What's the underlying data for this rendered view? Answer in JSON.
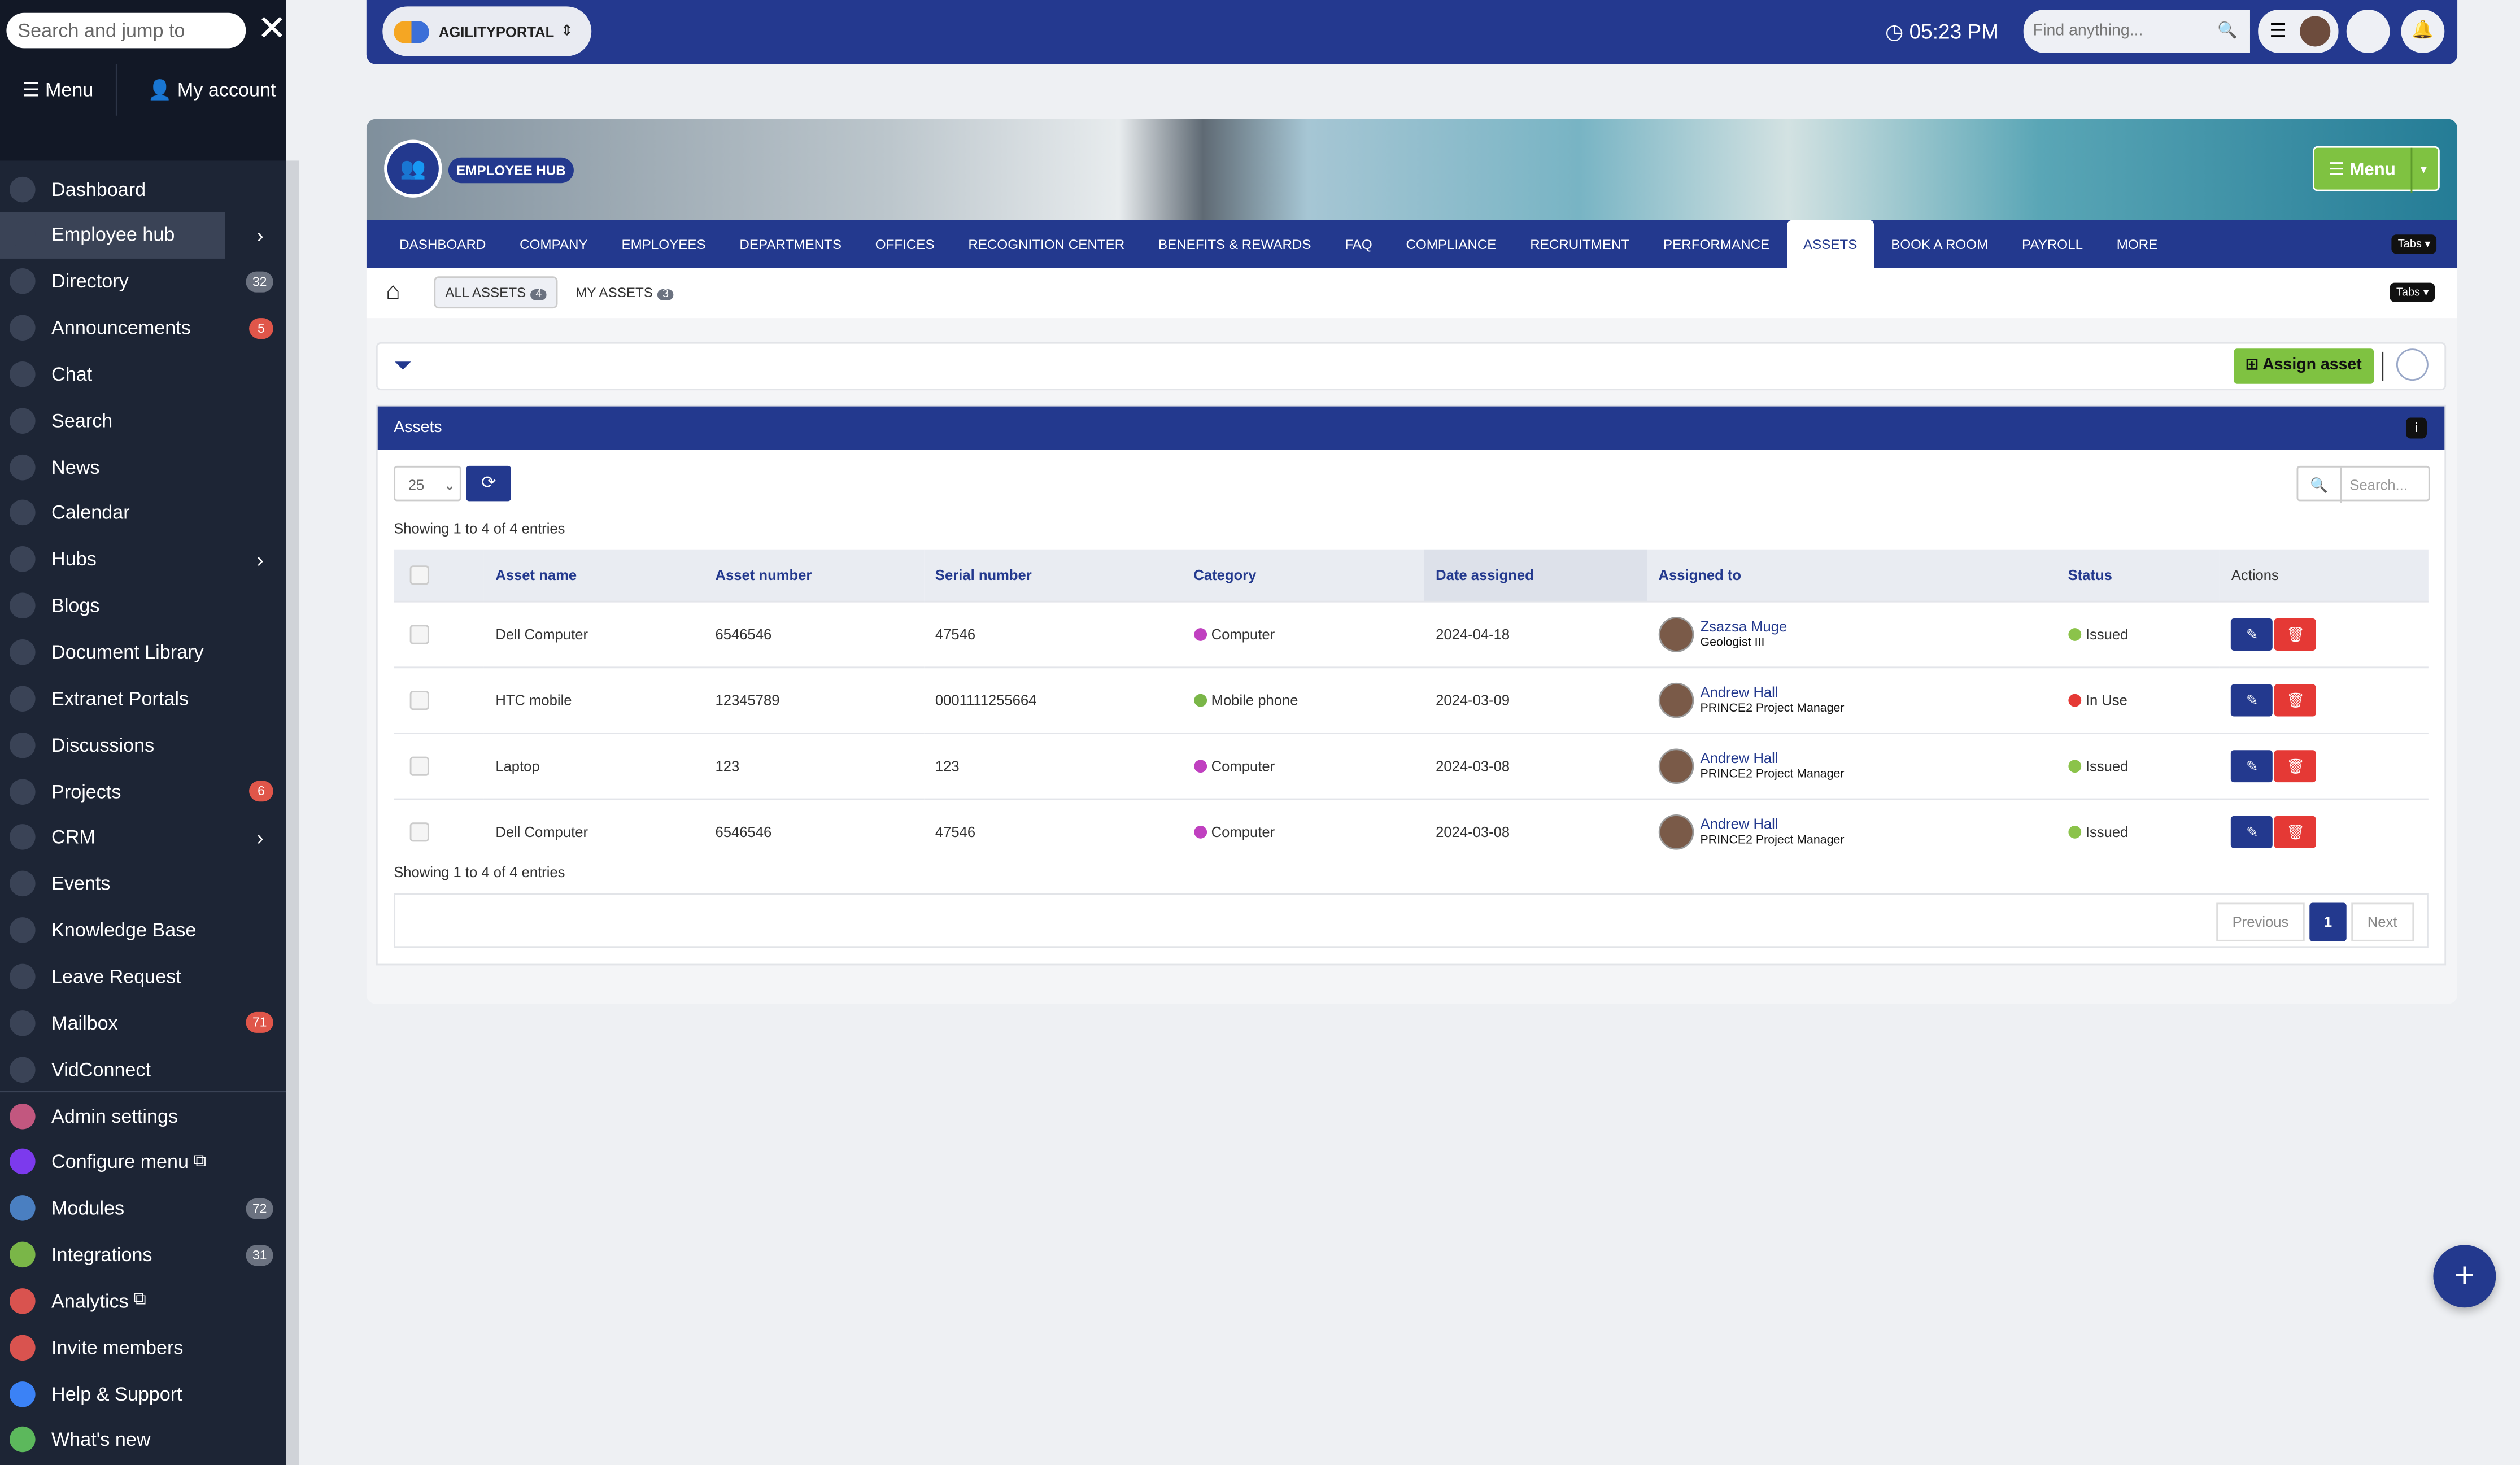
{
  "sidebar": {
    "search_placeholder": "Search and jump to",
    "menu": "Menu",
    "my_account": "My account",
    "items": [
      {
        "label": "Dashboard"
      },
      {
        "label": "Employee hub",
        "active": true,
        "submenu": true
      },
      {
        "label": "Directory",
        "badge": "32",
        "badge_color": "#6b7280"
      },
      {
        "label": "Announcements",
        "badge": "5",
        "badge_color": "#e0564a"
      },
      {
        "label": "Chat"
      },
      {
        "label": "Search"
      },
      {
        "label": "News"
      },
      {
        "label": "Calendar"
      },
      {
        "label": "Hubs",
        "submenu": true
      },
      {
        "label": "Blogs"
      },
      {
        "label": "Document Library"
      },
      {
        "label": "Extranet Portals"
      },
      {
        "label": "Discussions"
      },
      {
        "label": "Projects",
        "badge": "6",
        "badge_color": "#e0564a"
      },
      {
        "label": "CRM",
        "submenu": true
      },
      {
        "label": "Events"
      },
      {
        "label": "Knowledge Base"
      },
      {
        "label": "Leave Request"
      },
      {
        "label": "Mailbox",
        "badge": "71",
        "badge_color": "#e0564a"
      },
      {
        "label": "VidConnect"
      }
    ],
    "admin_items": [
      {
        "label": "Admin settings",
        "color": "#c2577f"
      },
      {
        "label": "Configure menu",
        "color": "#7c3aed",
        "external": true
      },
      {
        "label": "Modules",
        "color": "#4a7fc1",
        "badge": "72",
        "badge_color": "#6b7280"
      },
      {
        "label": "Integrations",
        "color": "#7ab648",
        "badge": "31",
        "badge_color": "#6b7280"
      },
      {
        "label": "Analytics",
        "color": "#d9534f",
        "external": true
      },
      {
        "label": "Invite members",
        "color": "#d9534f"
      },
      {
        "label": "Help & Support",
        "color": "#3b82f6"
      },
      {
        "label": "What's new",
        "color": "#5cb85c"
      }
    ]
  },
  "topbar": {
    "brand": "AGILITYPORTAL",
    "time": "05:23 PM",
    "find_placeholder": "Find anything..."
  },
  "hub": {
    "title": "EMPLOYEE HUB",
    "menu": "Menu",
    "tabs_button": "Tabs",
    "tabs": [
      "DASHBOARD",
      "COMPANY",
      "EMPLOYEES",
      "DEPARTMENTS",
      "OFFICES",
      "RECOGNITION CENTER",
      "BENEFITS & REWARDS",
      "FAQ",
      "COMPLIANCE",
      "RECRUITMENT",
      "PERFORMANCE",
      "ASSETS",
      "BOOK A ROOM",
      "PAYROLL",
      "MORE"
    ],
    "active_tab": 11,
    "subtabs": [
      {
        "label": "ALL ASSETS",
        "count": "4",
        "active": true
      },
      {
        "label": "MY ASSETS",
        "count": "3"
      }
    ]
  },
  "assets": {
    "assign_button": "Assign asset",
    "panel_title": "Assets",
    "page_size": "25",
    "search_placeholder": "Search...",
    "info": "Showing 1 to 4 of 4 entries",
    "columns": [
      "Asset name",
      "Asset number",
      "Serial number",
      "Category",
      "Date assigned",
      "Assigned to",
      "Status",
      "Actions"
    ],
    "sorted_column": 4,
    "rows": [
      {
        "name": "Dell Computer",
        "number": "6546546",
        "serial": "47546",
        "category": "Computer",
        "category_color": "#c040c0",
        "date": "2024-04-18",
        "assignee": "Zsazsa Muge",
        "assignee_title": "Geologist III",
        "status": "Issued",
        "status_color": "#8bc34a"
      },
      {
        "name": "HTC mobile",
        "number": "12345789",
        "serial": "0001111255664",
        "category": "Mobile phone",
        "category_color": "#7ab648",
        "date": "2024-03-09",
        "assignee": "Andrew Hall",
        "assignee_title": "PRINCE2 Project Manager",
        "status": "In Use",
        "status_color": "#e53935"
      },
      {
        "name": "Laptop",
        "number": "123",
        "serial": "123",
        "category": "Computer",
        "category_color": "#c040c0",
        "date": "2024-03-08",
        "assignee": "Andrew Hall",
        "assignee_title": "PRINCE2 Project Manager",
        "status": "Issued",
        "status_color": "#8bc34a"
      },
      {
        "name": "Dell Computer",
        "number": "6546546",
        "serial": "47546",
        "category": "Computer",
        "category_color": "#c040c0",
        "date": "2024-03-08",
        "assignee": "Andrew Hall",
        "assignee_title": "PRINCE2 Project Manager",
        "status": "Issued",
        "status_color": "#8bc34a"
      }
    ],
    "pagination": {
      "previous": "Previous",
      "page": "1",
      "next": "Next"
    }
  }
}
